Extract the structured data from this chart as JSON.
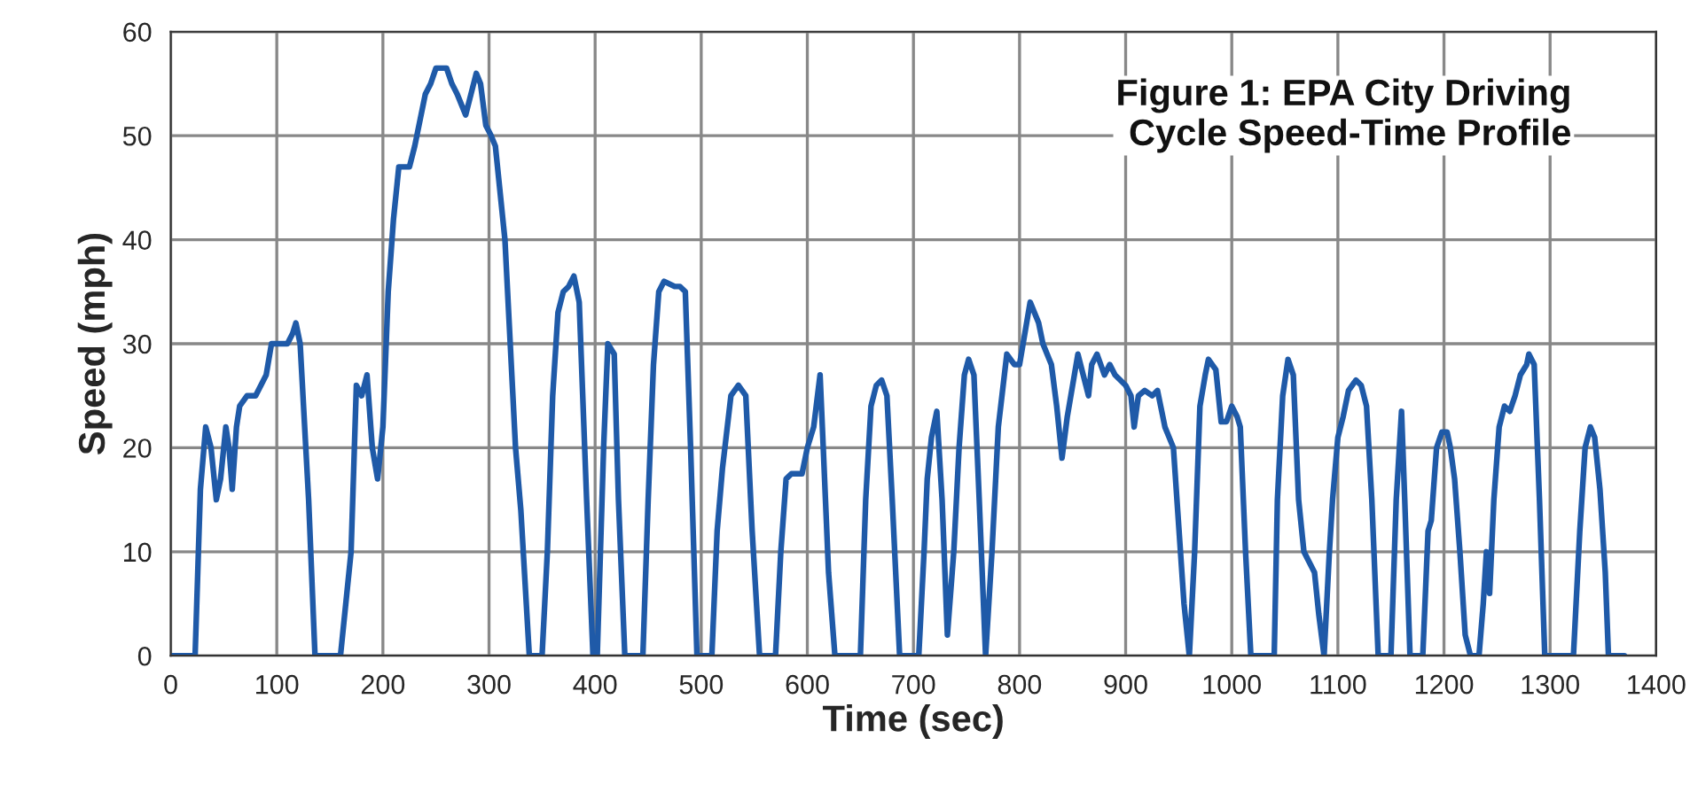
{
  "chart_data": {
    "type": "line",
    "title": "Figure 1: EPA City Driving\nCycle Speed-Time Profile",
    "xlabel": "Time (sec)",
    "ylabel": "Speed (mph)",
    "xlim": [
      0,
      1400
    ],
    "xticks": [
      0,
      100,
      200,
      300,
      400,
      500,
      600,
      700,
      800,
      900,
      1000,
      1100,
      1200,
      1300,
      1400
    ],
    "ylim": [
      0,
      60
    ],
    "yticks": [
      0,
      10,
      20,
      30,
      40,
      50,
      60
    ],
    "grid": true,
    "legend": false,
    "marker": "none",
    "line_style": "solid",
    "series": [
      {
        "color": "#1f5aa8",
        "x": [
          0,
          20,
          23,
          28,
          33,
          38,
          43,
          47,
          52,
          55,
          58,
          62,
          65,
          72,
          80,
          90,
          95,
          105,
          110,
          115,
          118,
          122,
          130,
          136,
          160,
          170,
          175,
          180,
          185,
          190,
          195,
          200,
          205,
          210,
          215,
          225,
          230,
          240,
          245,
          250,
          260,
          265,
          270,
          278,
          288,
          292,
          297,
          302,
          306,
          315,
          320,
          325,
          330,
          338,
          350,
          355,
          360,
          365,
          370,
          375,
          380,
          385,
          392,
          398,
          402,
          408,
          412,
          418,
          422,
          428,
          445,
          450,
          455,
          460,
          465,
          475,
          480,
          485,
          490,
          496,
          510,
          515,
          520,
          528,
          535,
          542,
          548,
          555,
          570,
          575,
          580,
          585,
          595,
          600,
          606,
          612,
          615,
          620,
          626,
          650,
          655,
          660,
          665,
          670,
          675,
          680,
          687,
          705,
          710,
          713,
          717,
          722,
          727,
          732,
          738,
          743,
          748,
          752,
          757,
          762,
          768,
          774,
          780,
          788,
          795,
          800,
          805,
          810,
          818,
          822,
          830,
          835,
          840,
          845,
          850,
          855,
          860,
          865,
          868,
          873,
          880,
          885,
          890,
          900,
          905,
          908,
          912,
          918,
          925,
          930,
          933,
          937,
          945,
          955,
          960,
          965,
          970,
          975,
          978,
          985,
          990,
          995,
          1000,
          1005,
          1008,
          1013,
          1018,
          1040,
          1043,
          1048,
          1053,
          1058,
          1063,
          1068,
          1073,
          1078,
          1082,
          1087,
          1092,
          1095,
          1100,
          1105,
          1110,
          1117,
          1122,
          1127,
          1132,
          1138,
          1150,
          1155,
          1160,
          1163,
          1168,
          1180,
          1185,
          1188,
          1193,
          1198,
          1203,
          1206,
          1210,
          1215,
          1220,
          1225,
          1233,
          1237,
          1240,
          1243,
          1247,
          1252,
          1257,
          1262,
          1267,
          1272,
          1278,
          1280,
          1285,
          1290,
          1295,
          1322,
          1328,
          1333,
          1338,
          1342,
          1347,
          1352,
          1355,
          1370
        ],
        "values": [
          0,
          0,
          0,
          16,
          22,
          20,
          15,
          17,
          22,
          20,
          16,
          22,
          24,
          25,
          25,
          27,
          30,
          30,
          30,
          31,
          32,
          30,
          15,
          0,
          0,
          10,
          26,
          25,
          27,
          20,
          17,
          22,
          35,
          42,
          47,
          47,
          49,
          54,
          55,
          56.5,
          56.5,
          55,
          54,
          52,
          56,
          55,
          51,
          50,
          49,
          40,
          30,
          20,
          14,
          0,
          0,
          10,
          25,
          33,
          35,
          35.5,
          36.5,
          34,
          15,
          0,
          0,
          20,
          30,
          29,
          15,
          0,
          0,
          15,
          28,
          35,
          36,
          35.5,
          35.5,
          35,
          20,
          0,
          0,
          12,
          18,
          25,
          26,
          25,
          12,
          0,
          0,
          10,
          17,
          17.5,
          17.5,
          20,
          22,
          27,
          20,
          8,
          0,
          0,
          15,
          24,
          26,
          26.5,
          25,
          15,
          0,
          0,
          10,
          17,
          21,
          23.5,
          15,
          2,
          10,
          20,
          27,
          28.5,
          27,
          15,
          0,
          10,
          22,
          29,
          28,
          28,
          31,
          34,
          32,
          30,
          28,
          24,
          19,
          23,
          26,
          29,
          27,
          25,
          28,
          29,
          27,
          28,
          27,
          26,
          25,
          22,
          25,
          25.5,
          25,
          25.5,
          24,
          22,
          20,
          5,
          0,
          10,
          24,
          27,
          28.5,
          27.5,
          22.5,
          22.5,
          24,
          23,
          22,
          10,
          0,
          0,
          15,
          25,
          28.5,
          27,
          15,
          10,
          9,
          8,
          4,
          0,
          10,
          15,
          21,
          23,
          25.5,
          26.5,
          26,
          24,
          15,
          0,
          0,
          15,
          23.5,
          15,
          0,
          0,
          12,
          13,
          20,
          21.5,
          21.5,
          20,
          17,
          10,
          2,
          0,
          0,
          5,
          10,
          6,
          15,
          22,
          24,
          23.5,
          25,
          27,
          28,
          29,
          28,
          15,
          0,
          0,
          12,
          20,
          22,
          21,
          16,
          8,
          0,
          0
        ]
      }
    ]
  }
}
